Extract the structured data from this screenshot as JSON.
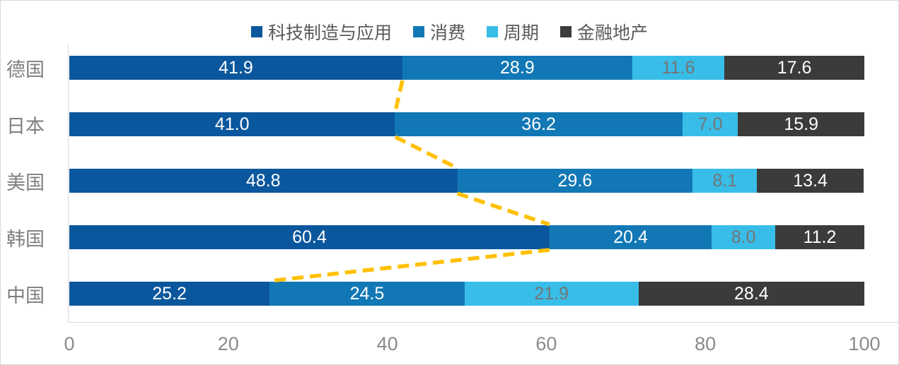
{
  "chart_data": {
    "type": "bar",
    "orientation": "horizontal-stacked",
    "title": "",
    "xlabel": "",
    "ylabel": "",
    "xlim": [
      0,
      100
    ],
    "xticks": [
      "0",
      "20",
      "40",
      "60",
      "80",
      "100"
    ],
    "grid": false,
    "legend_position": "top",
    "categories": [
      "德国",
      "日本",
      "美国",
      "韩国",
      "中国"
    ],
    "series": [
      {
        "name": "科技制造与应用",
        "color": "#0B579D",
        "label_color": "#FFFFFF",
        "values": [
          41.9,
          41.0,
          48.8,
          60.4,
          25.2
        ],
        "labels": [
          "41.9",
          "41.0",
          "48.8",
          "60.4",
          "25.2"
        ]
      },
      {
        "name": "消费",
        "color": "#1278B5",
        "label_color": "#FFFFFF",
        "values": [
          28.9,
          36.2,
          29.6,
          20.4,
          24.5
        ],
        "labels": [
          "28.9",
          "36.2",
          "29.6",
          "20.4",
          "24.5"
        ]
      },
      {
        "name": "周期",
        "color": "#38BDE8",
        "label_color": "#757575",
        "values": [
          11.6,
          7.0,
          8.1,
          8.0,
          21.9
        ],
        "labels": [
          "11.6",
          "7.0",
          "8.1",
          "8.0",
          "21.9"
        ]
      },
      {
        "name": "金融地产",
        "color": "#3B3B3B",
        "label_color": "#FFFFFF",
        "values": [
          17.6,
          15.9,
          13.4,
          11.2,
          28.4
        ],
        "labels": [
          "17.6",
          "15.9",
          "13.4",
          "11.2",
          "28.4"
        ]
      }
    ],
    "connector_line": {
      "color": "#FFC000",
      "style": "dashed",
      "follows_series": "科技制造与应用"
    },
    "colors": {
      "axis_line": "#D9D9D9",
      "tick_text": "#8A8A8A",
      "category_text": "#7F7F7F",
      "legend_text": "#595959",
      "background": "#FFFFFF"
    }
  }
}
